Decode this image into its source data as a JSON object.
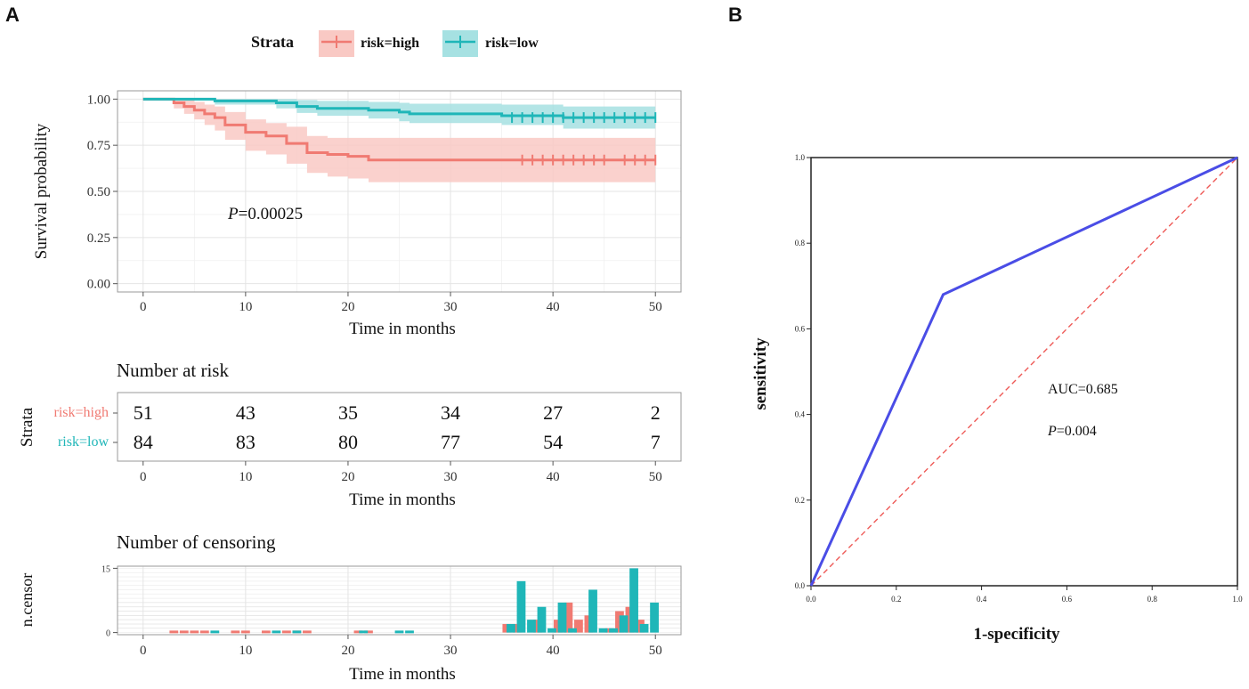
{
  "panel_labels": {
    "a": "A",
    "b": "B"
  },
  "colors": {
    "high": "#f07a72",
    "high_band": "#f9c9c4",
    "low": "#1fb6b8",
    "low_band": "#a6e1e2",
    "roc": "#4a4de6",
    "diag": "#ee5a57",
    "grid": "#e4e4e4",
    "panel_border": "#9a9a9a",
    "text": "#1a1a1a"
  },
  "legend": {
    "title": "Strata",
    "items": [
      {
        "label": "risk=high",
        "key": "high"
      },
      {
        "label": "risk=low",
        "key": "low"
      }
    ]
  },
  "chart_data": [
    {
      "id": "km",
      "type": "line",
      "title": "",
      "xlabel": "Time in months",
      "ylabel": "Survival probability",
      "xlim": [
        -2.5,
        52.5
      ],
      "ylim": [
        -0.045,
        1.045
      ],
      "xticks": [
        0,
        10,
        20,
        30,
        40,
        50
      ],
      "yticks": [
        0.0,
        0.25,
        0.5,
        0.75,
        1.0
      ],
      "ytick_labels": [
        "0.00",
        "0.25",
        "0.50",
        "0.75",
        "1.00"
      ],
      "annotation": {
        "italic": "P",
        "text": "=0.00025",
        "x": 7.8,
        "y": 0.36
      },
      "series": [
        {
          "name": "risk=high",
          "key": "high",
          "steps": [
            [
              0,
              1.0
            ],
            [
              3,
              0.98
            ],
            [
              4,
              0.96
            ],
            [
              5,
              0.94
            ],
            [
              6,
              0.92
            ],
            [
              7,
              0.9
            ],
            [
              8,
              0.86
            ],
            [
              10,
              0.82
            ],
            [
              12,
              0.8
            ],
            [
              14,
              0.76
            ],
            [
              16,
              0.71
            ],
            [
              18,
              0.7
            ],
            [
              20,
              0.69
            ],
            [
              22,
              0.67
            ],
            [
              50,
              0.67
            ]
          ],
          "band": [
            [
              0,
              1.0,
              1.0
            ],
            [
              3,
              1.0,
              0.95
            ],
            [
              4,
              0.995,
              0.92
            ],
            [
              5,
              0.985,
              0.89
            ],
            [
              6,
              0.97,
              0.86
            ],
            [
              7,
              0.96,
              0.83
            ],
            [
              8,
              0.93,
              0.78
            ],
            [
              10,
              0.89,
              0.72
            ],
            [
              12,
              0.87,
              0.7
            ],
            [
              14,
              0.85,
              0.65
            ],
            [
              16,
              0.8,
              0.6
            ],
            [
              18,
              0.79,
              0.58
            ],
            [
              20,
              0.79,
              0.57
            ],
            [
              22,
              0.79,
              0.55
            ],
            [
              50,
              0.79,
              0.55
            ]
          ],
          "censors": [
            37,
            38,
            39,
            40,
            41,
            42,
            43,
            44,
            45,
            47,
            48,
            49,
            50
          ]
        },
        {
          "name": "risk=low",
          "key": "low",
          "steps": [
            [
              0,
              1.0
            ],
            [
              7,
              0.99
            ],
            [
              13,
              0.98
            ],
            [
              15,
              0.96
            ],
            [
              17,
              0.95
            ],
            [
              22,
              0.94
            ],
            [
              25,
              0.93
            ],
            [
              26,
              0.92
            ],
            [
              35,
              0.91
            ],
            [
              41,
              0.9
            ],
            [
              50,
              0.9
            ]
          ],
          "band": [
            [
              0,
              1.0,
              1.0
            ],
            [
              7,
              1.0,
              0.97
            ],
            [
              13,
              1.0,
              0.95
            ],
            [
              15,
              0.995,
              0.925
            ],
            [
              17,
              0.99,
              0.91
            ],
            [
              22,
              0.985,
              0.895
            ],
            [
              25,
              0.98,
              0.88
            ],
            [
              26,
              0.975,
              0.87
            ],
            [
              35,
              0.97,
              0.86
            ],
            [
              41,
              0.96,
              0.84
            ],
            [
              50,
              0.96,
              0.84
            ]
          ],
          "censors": [
            36,
            37,
            38,
            39,
            40,
            41,
            42,
            43,
            44,
            45,
            46,
            47,
            48,
            49,
            50
          ]
        }
      ]
    },
    {
      "id": "risk_table",
      "type": "table",
      "title": "Number at risk",
      "xlabel": "Time in months",
      "ylabel": "Strata",
      "xlim": [
        -2.5,
        52.5
      ],
      "xticks": [
        0,
        10,
        20,
        30,
        40,
        50
      ],
      "times": [
        0,
        10,
        20,
        30,
        40,
        50
      ],
      "rows": [
        {
          "label": "risk=high",
          "key": "high",
          "values": [
            "51",
            "43",
            "35",
            "34",
            "27",
            "2"
          ]
        },
        {
          "label": "risk=low",
          "key": "low",
          "values": [
            "84",
            "83",
            "80",
            "77",
            "54",
            "7"
          ]
        }
      ]
    },
    {
      "id": "censor",
      "type": "bar",
      "title": "Number of censoring",
      "xlabel": "Time in months",
      "ylabel": "n.censor",
      "xlim": [
        -2.5,
        52.5
      ],
      "ylim": [
        -0.5,
        15.5
      ],
      "xticks": [
        0,
        10,
        20,
        30,
        40,
        50
      ],
      "yticks": [
        0,
        15
      ],
      "series": [
        {
          "name": "risk=high",
          "key": "high",
          "x": [
            3,
            4,
            5,
            6,
            9,
            10,
            12,
            14,
            15,
            16,
            21,
            22,
            35.5,
            36.5,
            38.5,
            40.5,
            41.5,
            42.5,
            43.5,
            45.5,
            46.5,
            47.5,
            48.5
          ],
          "values": [
            0.15,
            0.15,
            0.15,
            0.15,
            0.15,
            0.15,
            0.15,
            0.15,
            0.15,
            0.15,
            0.15,
            0.15,
            2,
            2,
            3,
            3,
            7,
            3,
            4,
            1,
            5,
            6,
            3
          ]
        },
        {
          "name": "risk=low",
          "key": "low",
          "x": [
            7,
            13,
            15,
            21.5,
            25,
            26,
            35.9,
            36.9,
            37.9,
            38.9,
            39.9,
            40.9,
            41.9,
            43.9,
            44.9,
            45.9,
            46.9,
            47.9,
            48.9,
            49.9
          ],
          "values": [
            0.15,
            0.15,
            0.15,
            0.15,
            0.15,
            0.15,
            2,
            12,
            3,
            6,
            1,
            7,
            1,
            10,
            1,
            1,
            4,
            15,
            2,
            7
          ]
        }
      ]
    },
    {
      "id": "roc",
      "type": "line",
      "title": "",
      "xlabel": "1-specificity",
      "ylabel": "sensitivity",
      "xlim": [
        0,
        1
      ],
      "ylim": [
        0,
        1
      ],
      "xticks": [
        0.0,
        0.2,
        0.4,
        0.6,
        0.8,
        1.0
      ],
      "yticks": [
        0.0,
        0.2,
        0.4,
        0.6,
        0.8,
        1.0
      ],
      "tick_labels": [
        "0.0",
        "0.2",
        "0.4",
        "0.6",
        "0.8",
        "1.0"
      ],
      "auc_text": "AUC=0.685",
      "p_italic": "P",
      "p_text": "=0.004",
      "series": [
        {
          "name": "ROC",
          "x": [
            0,
            0.31,
            1.0
          ],
          "y": [
            0,
            0.68,
            1.0
          ]
        },
        {
          "name": "reference",
          "x": [
            0,
            1
          ],
          "y": [
            0,
            1
          ]
        }
      ]
    }
  ]
}
